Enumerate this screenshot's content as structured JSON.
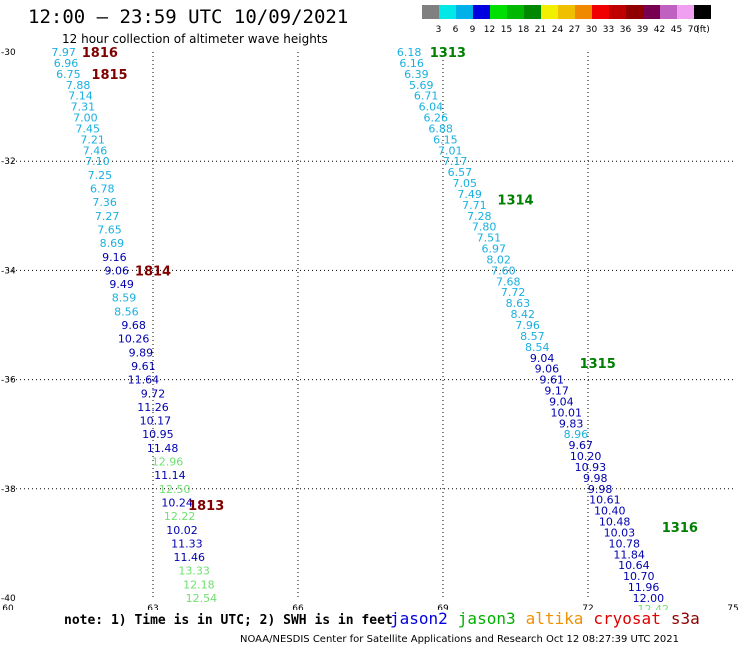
{
  "header": {
    "title": "12:00 – 23:59 UTC 10/09/2021",
    "subtitle": "12 hour collection of altimeter wave heights"
  },
  "legend": {
    "unit": "(ft)",
    "bins": [
      {
        "label": "3",
        "color": "#808080"
      },
      {
        "label": "6",
        "color": "#00e8e8"
      },
      {
        "label": "9",
        "color": "#00b0e8"
      },
      {
        "label": "12",
        "color": "#0000e0"
      },
      {
        "label": "15",
        "color": "#00e000"
      },
      {
        "label": "18",
        "color": "#00b800"
      },
      {
        "label": "21",
        "color": "#008800"
      },
      {
        "label": "24",
        "color": "#f0f000"
      },
      {
        "label": "27",
        "color": "#f0c000"
      },
      {
        "label": "30",
        "color": "#f08800"
      },
      {
        "label": "33",
        "color": "#f00000"
      },
      {
        "label": "36",
        "color": "#c00000"
      },
      {
        "label": "39",
        "color": "#900000"
      },
      {
        "label": "42",
        "color": "#780050"
      },
      {
        "label": "45",
        "color": "#c060c0"
      },
      {
        "label": "70",
        "color": "#f0a0f0"
      },
      {
        "label": "",
        "color": "#000000"
      }
    ]
  },
  "axes": {
    "lon": {
      "min": 60,
      "max": 75,
      "ticks": [
        "60",
        "63",
        "66",
        "69",
        "72",
        "75"
      ]
    },
    "lat": {
      "min": -40,
      "max": -30,
      "ticks": [
        "-30",
        "-32",
        "-34",
        "-36",
        "-38",
        "-40"
      ]
    }
  },
  "colors": {
    "c_light": "#1ab0e0",
    "c_dark": "#0000b0",
    "c_green": "#70e070",
    "pass_west": "#800000",
    "pass_east": "#008000"
  },
  "tracks": [
    {
      "name": "west",
      "passes": [
        {
          "label": "1816",
          "lat": -30.0,
          "lon": 61.9
        },
        {
          "label": "1815",
          "lat": -30.4,
          "lon": 62.1
        },
        {
          "label": "1814",
          "lat": -34.0,
          "lon": 63.0
        },
        {
          "label": "1813",
          "lat": -38.3,
          "lon": 64.1
        }
      ],
      "obs": [
        {
          "v": "7.97",
          "lat": -30.0,
          "lon": 61.15,
          "c": "c_light"
        },
        {
          "v": "6.96",
          "lat": -30.2,
          "lon": 61.2,
          "c": "c_light"
        },
        {
          "v": "6.75",
          "lat": -30.4,
          "lon": 61.25,
          "c": "c_light"
        },
        {
          "v": "7.88",
          "lat": -30.6,
          "lon": 61.45,
          "c": "c_light"
        },
        {
          "v": "7.14",
          "lat": -30.8,
          "lon": 61.5,
          "c": "c_light"
        },
        {
          "v": "7.31",
          "lat": -31.0,
          "lon": 61.55,
          "c": "c_light"
        },
        {
          "v": "7.00",
          "lat": -31.2,
          "lon": 61.6,
          "c": "c_light"
        },
        {
          "v": "7.45",
          "lat": -31.4,
          "lon": 61.65,
          "c": "c_light"
        },
        {
          "v": "7.21",
          "lat": -31.6,
          "lon": 61.75,
          "c": "c_light"
        },
        {
          "v": "7.46",
          "lat": -31.8,
          "lon": 61.8,
          "c": "c_light"
        },
        {
          "v": "7.10",
          "lat": -32.0,
          "lon": 61.85,
          "c": "c_light"
        },
        {
          "v": "7.25",
          "lat": -32.25,
          "lon": 61.9,
          "c": "c_light"
        },
        {
          "v": "6.78",
          "lat": -32.5,
          "lon": 61.95,
          "c": "c_light"
        },
        {
          "v": "7.36",
          "lat": -32.75,
          "lon": 62.0,
          "c": "c_light"
        },
        {
          "v": "7.27",
          "lat": -33.0,
          "lon": 62.05,
          "c": "c_light"
        },
        {
          "v": "7.65",
          "lat": -33.25,
          "lon": 62.1,
          "c": "c_light"
        },
        {
          "v": "8.69",
          "lat": -33.5,
          "lon": 62.15,
          "c": "c_light"
        },
        {
          "v": "9.16",
          "lat": -33.75,
          "lon": 62.2,
          "c": "c_dark"
        },
        {
          "v": "9.06",
          "lat": -34.0,
          "lon": 62.25,
          "c": "c_dark"
        },
        {
          "v": "9.49",
          "lat": -34.25,
          "lon": 62.35,
          "c": "c_dark"
        },
        {
          "v": "8.59",
          "lat": -34.5,
          "lon": 62.4,
          "c": "c_light"
        },
        {
          "v": "8.56",
          "lat": -34.75,
          "lon": 62.45,
          "c": "c_light"
        },
        {
          "v": "9.68",
          "lat": -35.0,
          "lon": 62.6,
          "c": "c_dark"
        },
        {
          "v": "10.26",
          "lat": -35.25,
          "lon": 62.6,
          "c": "c_dark"
        },
        {
          "v": "9.89",
          "lat": -35.5,
          "lon": 62.75,
          "c": "c_dark"
        },
        {
          "v": "9.61",
          "lat": -35.75,
          "lon": 62.8,
          "c": "c_dark"
        },
        {
          "v": "11.64",
          "lat": -36.0,
          "lon": 62.8,
          "c": "c_dark"
        },
        {
          "v": "9.72",
          "lat": -36.25,
          "lon": 63.0,
          "c": "c_dark"
        },
        {
          "v": "11.26",
          "lat": -36.5,
          "lon": 63.0,
          "c": "c_dark"
        },
        {
          "v": "10.17",
          "lat": -36.75,
          "lon": 63.05,
          "c": "c_dark"
        },
        {
          "v": "10.95",
          "lat": -37.0,
          "lon": 63.1,
          "c": "c_dark"
        },
        {
          "v": "11.48",
          "lat": -37.25,
          "lon": 63.2,
          "c": "c_dark"
        },
        {
          "v": "12.96",
          "lat": -37.5,
          "lon": 63.3,
          "c": "c_green"
        },
        {
          "v": "11.14",
          "lat": -37.75,
          "lon": 63.35,
          "c": "c_dark"
        },
        {
          "v": "12.50",
          "lat": -38.0,
          "lon": 63.45,
          "c": "c_green"
        },
        {
          "v": "10.24",
          "lat": -38.25,
          "lon": 63.5,
          "c": "c_dark"
        },
        {
          "v": "12.22",
          "lat": -38.5,
          "lon": 63.55,
          "c": "c_green"
        },
        {
          "v": "10.02",
          "lat": -38.75,
          "lon": 63.6,
          "c": "c_dark"
        },
        {
          "v": "11.33",
          "lat": -39.0,
          "lon": 63.7,
          "c": "c_dark"
        },
        {
          "v": "11.46",
          "lat": -39.25,
          "lon": 63.75,
          "c": "c_dark"
        },
        {
          "v": "13.33",
          "lat": -39.5,
          "lon": 63.85,
          "c": "c_green"
        },
        {
          "v": "12.18",
          "lat": -39.75,
          "lon": 63.95,
          "c": "c_green"
        },
        {
          "v": "12.54",
          "lat": -40.0,
          "lon": 64.0,
          "c": "c_green"
        }
      ]
    },
    {
      "name": "east",
      "passes": [
        {
          "label": "1313",
          "lat": -30.0,
          "lon": 69.1
        },
        {
          "label": "1314",
          "lat": -32.7,
          "lon": 70.5
        },
        {
          "label": "1315",
          "lat": -35.7,
          "lon": 72.2
        },
        {
          "label": "1316",
          "lat": -38.7,
          "lon": 73.9
        }
      ],
      "obs": [
        {
          "v": "6.18",
          "lat": -30.0,
          "lon": 68.3,
          "c": "c_light"
        },
        {
          "v": "6.16",
          "lat": -30.2,
          "lon": 68.35,
          "c": "c_light"
        },
        {
          "v": "6.39",
          "lat": -30.4,
          "lon": 68.45,
          "c": "c_light"
        },
        {
          "v": "5.69",
          "lat": -30.6,
          "lon": 68.55,
          "c": "c_light"
        },
        {
          "v": "6.71",
          "lat": -30.8,
          "lon": 68.65,
          "c": "c_light"
        },
        {
          "v": "6.04",
          "lat": -31.0,
          "lon": 68.75,
          "c": "c_light"
        },
        {
          "v": "6.26",
          "lat": -31.2,
          "lon": 68.85,
          "c": "c_light"
        },
        {
          "v": "6.88",
          "lat": -31.4,
          "lon": 68.95,
          "c": "c_light"
        },
        {
          "v": "6.15",
          "lat": -31.6,
          "lon": 69.05,
          "c": "c_light"
        },
        {
          "v": "7.01",
          "lat": -31.8,
          "lon": 69.15,
          "c": "c_light"
        },
        {
          "v": "7.17",
          "lat": -32.0,
          "lon": 69.25,
          "c": "c_light"
        },
        {
          "v": "6.57",
          "lat": -32.2,
          "lon": 69.35,
          "c": "c_light"
        },
        {
          "v": "7.05",
          "lat": -32.4,
          "lon": 69.45,
          "c": "c_light"
        },
        {
          "v": "7.49",
          "lat": -32.6,
          "lon": 69.55,
          "c": "c_light"
        },
        {
          "v": "7.71",
          "lat": -32.8,
          "lon": 69.65,
          "c": "c_light"
        },
        {
          "v": "7.28",
          "lat": -33.0,
          "lon": 69.75,
          "c": "c_light"
        },
        {
          "v": "7.80",
          "lat": -33.2,
          "lon": 69.85,
          "c": "c_light"
        },
        {
          "v": "7.51",
          "lat": -33.4,
          "lon": 69.95,
          "c": "c_light"
        },
        {
          "v": "6.97",
          "lat": -33.6,
          "lon": 70.05,
          "c": "c_light"
        },
        {
          "v": "8.02",
          "lat": -33.8,
          "lon": 70.15,
          "c": "c_light"
        },
        {
          "v": "7.60",
          "lat": -34.0,
          "lon": 70.25,
          "c": "c_light"
        },
        {
          "v": "7.68",
          "lat": -34.2,
          "lon": 70.35,
          "c": "c_light"
        },
        {
          "v": "7.72",
          "lat": -34.4,
          "lon": 70.45,
          "c": "c_light"
        },
        {
          "v": "8.63",
          "lat": -34.6,
          "lon": 70.55,
          "c": "c_light"
        },
        {
          "v": "8.42",
          "lat": -34.8,
          "lon": 70.65,
          "c": "c_light"
        },
        {
          "v": "7.96",
          "lat": -35.0,
          "lon": 70.75,
          "c": "c_light"
        },
        {
          "v": "8.57",
          "lat": -35.2,
          "lon": 70.85,
          "c": "c_light"
        },
        {
          "v": "8.54",
          "lat": -35.4,
          "lon": 70.95,
          "c": "c_light"
        },
        {
          "v": "9.04",
          "lat": -35.6,
          "lon": 71.05,
          "c": "c_dark"
        },
        {
          "v": "9.06",
          "lat": -35.8,
          "lon": 71.15,
          "c": "c_dark"
        },
        {
          "v": "9.61",
          "lat": -36.0,
          "lon": 71.25,
          "c": "c_dark"
        },
        {
          "v": "9.17",
          "lat": -36.2,
          "lon": 71.35,
          "c": "c_dark"
        },
        {
          "v": "9.04",
          "lat": -36.4,
          "lon": 71.45,
          "c": "c_dark"
        },
        {
          "v": "10.01",
          "lat": -36.6,
          "lon": 71.55,
          "c": "c_dark"
        },
        {
          "v": "9.83",
          "lat": -36.8,
          "lon": 71.65,
          "c": "c_dark"
        },
        {
          "v": "8.96",
          "lat": -37.0,
          "lon": 71.75,
          "c": "c_light"
        },
        {
          "v": "9.67",
          "lat": -37.2,
          "lon": 71.85,
          "c": "c_dark"
        },
        {
          "v": "10.20",
          "lat": -37.4,
          "lon": 71.95,
          "c": "c_dark"
        },
        {
          "v": "10.93",
          "lat": -37.6,
          "lon": 72.05,
          "c": "c_dark"
        },
        {
          "v": "9.98",
          "lat": -37.8,
          "lon": 72.15,
          "c": "c_dark"
        },
        {
          "v": "9.98",
          "lat": -38.0,
          "lon": 72.25,
          "c": "c_dark"
        },
        {
          "v": "10.61",
          "lat": -38.2,
          "lon": 72.35,
          "c": "c_dark"
        },
        {
          "v": "10.40",
          "lat": -38.4,
          "lon": 72.45,
          "c": "c_dark"
        },
        {
          "v": "10.48",
          "lat": -38.6,
          "lon": 72.55,
          "c": "c_dark"
        },
        {
          "v": "10.03",
          "lat": -38.8,
          "lon": 72.65,
          "c": "c_dark"
        },
        {
          "v": "10.78",
          "lat": -39.0,
          "lon": 72.75,
          "c": "c_dark"
        },
        {
          "v": "11.84",
          "lat": -39.2,
          "lon": 72.85,
          "c": "c_dark"
        },
        {
          "v": "10.64",
          "lat": -39.4,
          "lon": 72.95,
          "c": "c_dark"
        },
        {
          "v": "10.70",
          "lat": -39.6,
          "lon": 73.05,
          "c": "c_dark"
        },
        {
          "v": "11.96",
          "lat": -39.8,
          "lon": 73.15,
          "c": "c_dark"
        },
        {
          "v": "12.00",
          "lat": -40.0,
          "lon": 73.25,
          "c": "c_dark"
        },
        {
          "v": "12.42",
          "lat": -40.2,
          "lon": 73.35,
          "c": "c_green"
        }
      ]
    }
  ],
  "note": "note: 1) Time is in UTC; 2) SWH is in feet",
  "satellites": [
    {
      "name": "jason2",
      "color": "#0000e0"
    },
    {
      "name": "jason3",
      "color": "#00b000"
    },
    {
      "name": "altika",
      "color": "#f09000"
    },
    {
      "name": "cryosat",
      "color": "#e00000"
    },
    {
      "name": "s3a",
      "color": "#900000"
    }
  ],
  "footer": "NOAA/NESDIS Center for Satellite Applications and Research   Oct 12 08:27:39 UTC 2021"
}
